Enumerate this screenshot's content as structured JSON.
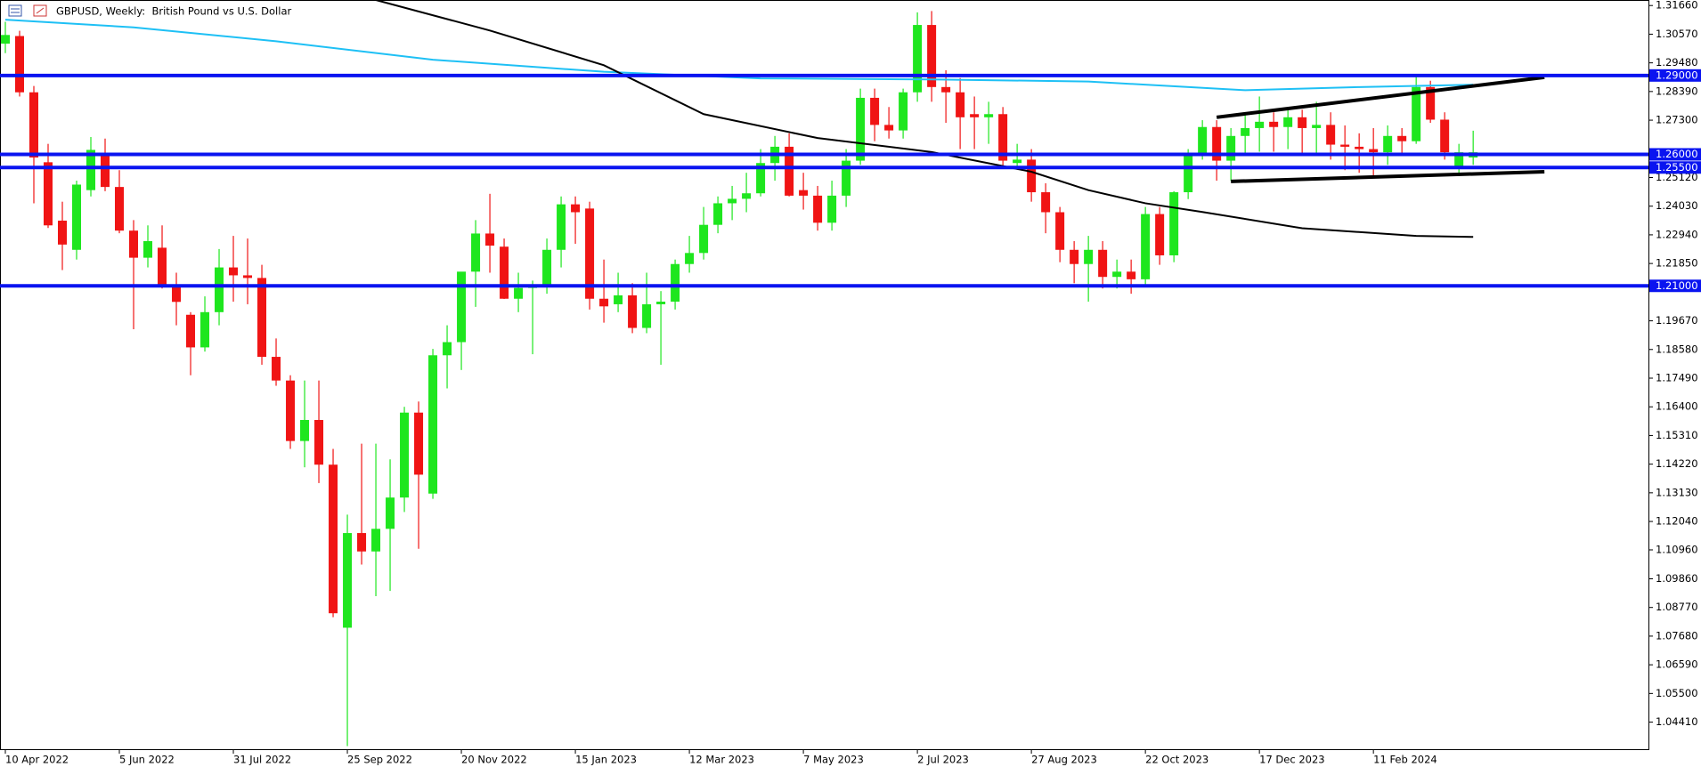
{
  "chart_data": {
    "type": "candlestick",
    "title": "GBPUSD, Weekly:  British Pound vs U.S. Dollar",
    "up_color": "#1ee61e",
    "down_color": "#f01414",
    "level_color": "#0a14f0",
    "xlim": [
      -0.375,
      115.3
    ],
    "ylim": [
      1.0338,
      1.3187
    ],
    "categories": [
      "10 Apr 2022",
      null,
      null,
      null,
      null,
      null,
      null,
      null,
      "5 Jun 2022",
      null,
      null,
      null,
      null,
      null,
      null,
      null,
      "31 Jul 2022",
      null,
      null,
      null,
      null,
      null,
      null,
      null,
      "25 Sep 2022",
      null,
      null,
      null,
      null,
      null,
      null,
      null,
      "20 Nov 2022",
      null,
      null,
      null,
      null,
      null,
      null,
      null,
      "15 Jan 2023",
      null,
      null,
      null,
      null,
      null,
      null,
      null,
      "12 Mar 2023",
      null,
      null,
      null,
      null,
      null,
      null,
      null,
      "7 May 2023",
      null,
      null,
      null,
      null,
      null,
      null,
      null,
      "2 Jul 2023",
      null,
      null,
      null,
      null,
      null,
      null,
      null,
      "27 Aug 2023",
      null,
      null,
      null,
      null,
      null,
      null,
      null,
      "22 Oct 2023",
      null,
      null,
      null,
      null,
      null,
      null,
      null,
      "17 Dec 2023",
      null,
      null,
      null,
      null,
      null,
      null,
      null,
      "11 Feb 2024",
      null,
      null,
      null,
      null,
      null,
      null,
      null
    ],
    "ohlc": [
      [
        1.3021,
        1.3104,
        1.2985,
        1.3054
      ],
      [
        1.305,
        1.307,
        1.282,
        1.2836
      ],
      [
        1.2836,
        1.286,
        1.2414,
        1.2588
      ],
      [
        1.257,
        1.264,
        1.232,
        1.233
      ],
      [
        1.2348,
        1.242,
        1.216,
        1.2257
      ],
      [
        1.2237,
        1.25,
        1.22,
        1.2485
      ],
      [
        1.2464,
        1.2666,
        1.244,
        1.2617
      ],
      [
        1.2596,
        1.266,
        1.246,
        1.2476
      ],
      [
        1.2476,
        1.254,
        1.23,
        1.231
      ],
      [
        1.231,
        1.235,
        1.1935,
        1.2207
      ],
      [
        1.2207,
        1.233,
        1.217,
        1.227
      ],
      [
        1.2245,
        1.233,
        1.209,
        1.2105
      ],
      [
        1.2105,
        1.215,
        1.195,
        1.2039
      ],
      [
        1.199,
        1.2,
        1.176,
        1.1866
      ],
      [
        1.1866,
        1.206,
        1.185,
        1.2
      ],
      [
        1.2,
        1.224,
        1.195,
        1.217
      ],
      [
        1.217,
        1.229,
        1.204,
        1.214
      ],
      [
        1.214,
        1.228,
        1.203,
        1.213
      ],
      [
        1.213,
        1.218,
        1.18,
        1.183
      ],
      [
        1.183,
        1.19,
        1.172,
        1.174
      ],
      [
        1.174,
        1.176,
        1.148,
        1.151
      ],
      [
        1.151,
        1.174,
        1.141,
        1.159
      ],
      [
        1.159,
        1.174,
        1.135,
        1.142
      ],
      [
        1.142,
        1.148,
        1.084,
        1.0855
      ],
      [
        1.08,
        1.123,
        1.035,
        1.116
      ],
      [
        1.116,
        1.15,
        1.104,
        1.109
      ],
      [
        1.109,
        1.15,
        1.092,
        1.1176
      ],
      [
        1.1176,
        1.144,
        1.094,
        1.1295
      ],
      [
        1.1295,
        1.164,
        1.124,
        1.1618
      ],
      [
        1.1618,
        1.166,
        1.11,
        1.1382
      ],
      [
        1.131,
        1.186,
        1.129,
        1.1836
      ],
      [
        1.1836,
        1.195,
        1.171,
        1.1886
      ],
      [
        1.1886,
        1.215,
        1.178,
        1.2154
      ],
      [
        1.2154,
        1.235,
        1.202,
        1.2299
      ],
      [
        1.2299,
        1.245,
        1.215,
        1.2253
      ],
      [
        1.2249,
        1.228,
        1.205,
        1.2051
      ],
      [
        1.2051,
        1.215,
        1.2,
        1.2092
      ],
      [
        1.2092,
        1.212,
        1.184,
        1.21
      ],
      [
        1.21,
        1.228,
        1.207,
        1.2237
      ],
      [
        1.2237,
        1.244,
        1.217,
        1.241
      ],
      [
        1.241,
        1.244,
        1.226,
        1.238
      ],
      [
        1.2394,
        1.242,
        1.201,
        1.2051
      ],
      [
        1.2051,
        1.22,
        1.196,
        1.2022
      ],
      [
        1.203,
        1.215,
        1.2,
        1.2064
      ],
      [
        1.2064,
        1.211,
        1.192,
        1.194
      ],
      [
        1.194,
        1.215,
        1.192,
        1.203
      ],
      [
        1.203,
        1.208,
        1.18,
        1.204
      ],
      [
        1.204,
        1.22,
        1.201,
        1.2183
      ],
      [
        1.2183,
        1.229,
        1.215,
        1.2225
      ],
      [
        1.2225,
        1.24,
        1.22,
        1.2332
      ],
      [
        1.2332,
        1.244,
        1.23,
        1.2414
      ],
      [
        1.2414,
        1.248,
        1.235,
        1.2431
      ],
      [
        1.2431,
        1.253,
        1.238,
        1.2452
      ],
      [
        1.2452,
        1.262,
        1.244,
        1.2567
      ],
      [
        1.2567,
        1.267,
        1.25,
        1.2629
      ],
      [
        1.2629,
        1.268,
        1.244,
        1.2443
      ],
      [
        1.2464,
        1.253,
        1.239,
        1.2443
      ],
      [
        1.2443,
        1.248,
        1.231,
        1.234
      ],
      [
        1.234,
        1.25,
        1.231,
        1.2443
      ],
      [
        1.2443,
        1.262,
        1.24,
        1.2576
      ],
      [
        1.2576,
        1.285,
        1.256,
        1.2815
      ],
      [
        1.2815,
        1.285,
        1.265,
        1.2712
      ],
      [
        1.2712,
        1.278,
        1.266,
        1.2691
      ],
      [
        1.2691,
        1.285,
        1.266,
        1.2836
      ],
      [
        1.2836,
        1.314,
        1.28,
        1.3092
      ],
      [
        1.3092,
        1.3145,
        1.28,
        1.2856
      ],
      [
        1.2856,
        1.292,
        1.272,
        1.2836
      ],
      [
        1.2836,
        1.289,
        1.262,
        1.2741
      ],
      [
        1.2753,
        1.282,
        1.262,
        1.2741
      ],
      [
        1.2741,
        1.28,
        1.264,
        1.2753
      ],
      [
        1.2753,
        1.278,
        1.255,
        1.2576
      ],
      [
        1.2567,
        1.264,
        1.255,
        1.258
      ],
      [
        1.258,
        1.262,
        1.242,
        1.2456
      ],
      [
        1.2456,
        1.249,
        1.23,
        1.238
      ],
      [
        1.238,
        1.24,
        1.219,
        1.2237
      ],
      [
        1.2237,
        1.227,
        1.211,
        1.2183
      ],
      [
        1.2183,
        1.229,
        1.204,
        1.2237
      ],
      [
        1.2237,
        1.227,
        1.209,
        1.2134
      ],
      [
        1.2134,
        1.22,
        1.209,
        1.2154
      ],
      [
        1.2154,
        1.22,
        1.207,
        1.2125
      ],
      [
        1.2125,
        1.24,
        1.21,
        1.2373
      ],
      [
        1.2373,
        1.24,
        1.218,
        1.2216
      ],
      [
        1.2216,
        1.246,
        1.219,
        1.2456
      ],
      [
        1.2456,
        1.262,
        1.243,
        1.26
      ],
      [
        1.26,
        1.273,
        1.258,
        1.2704
      ],
      [
        1.2704,
        1.273,
        1.25,
        1.2576
      ],
      [
        1.2576,
        1.27,
        1.25,
        1.267
      ],
      [
        1.267,
        1.276,
        1.26,
        1.27
      ],
      [
        1.27,
        1.282,
        1.261,
        1.2724
      ],
      [
        1.2724,
        1.276,
        1.261,
        1.2704
      ],
      [
        1.2704,
        1.277,
        1.262,
        1.2741
      ],
      [
        1.2741,
        1.277,
        1.26,
        1.27
      ],
      [
        1.27,
        1.28,
        1.26,
        1.2712
      ],
      [
        1.2712,
        1.276,
        1.258,
        1.2637
      ],
      [
        1.2637,
        1.271,
        1.254,
        1.2629
      ],
      [
        1.2629,
        1.268,
        1.253,
        1.262
      ],
      [
        1.262,
        1.27,
        1.252,
        1.2608
      ],
      [
        1.2608,
        1.271,
        1.256,
        1.267
      ],
      [
        1.267,
        1.27,
        1.26,
        1.265
      ],
      [
        1.265,
        1.29,
        1.264,
        1.2856
      ],
      [
        1.2856,
        1.288,
        1.272,
        1.2732
      ],
      [
        1.2732,
        1.276,
        1.258,
        1.2608
      ],
      [
        1.2546,
        1.264,
        1.252,
        1.2608
      ],
      [
        1.2588,
        1.269,
        1.256,
        1.2608
      ]
    ],
    "lines": [
      {
        "color": "#1ec0f5",
        "width": 2,
        "x": [
          0,
          9,
          19,
          30,
          42,
          53,
          65,
          76,
          87,
          95,
          103
        ],
        "values": [
          1.3112,
          1.3083,
          1.303,
          1.296,
          1.2914,
          1.2889,
          1.2885,
          1.2877,
          1.2844,
          1.2856,
          1.2865
        ]
      },
      {
        "color": "#000000",
        "width": 2,
        "x": [
          26,
          34,
          42,
          49,
          57,
          65,
          72,
          76,
          80,
          84,
          91,
          99,
          103
        ],
        "values": [
          1.3187,
          1.3071,
          1.2939,
          1.2753,
          1.2662,
          1.2609,
          1.2534,
          1.2464,
          1.2414,
          1.2381,
          1.2319,
          1.229,
          1.2286
        ]
      },
      {
        "color": "#000000",
        "width": 4,
        "x": [
          85,
          108
        ],
        "values": [
          1.2741,
          1.2893
        ]
      },
      {
        "color": "#000000",
        "width": 4,
        "x": [
          86,
          108
        ],
        "values": [
          1.2497,
          1.2534
        ]
      }
    ],
    "levels": [
      {
        "value": 1.29,
        "label": "1.29000"
      },
      {
        "value": 1.26,
        "label": "1.26000"
      },
      {
        "value": 1.255,
        "label": "1.25500"
      },
      {
        "value": 1.21,
        "label": "1.21000"
      }
    ],
    "yticks": [
      {
        "value": 1.3166,
        "label": "1.31660"
      },
      {
        "value": 1.3057,
        "label": "1.30570"
      },
      {
        "value": 1.2948,
        "label": "1.29480"
      },
      {
        "value": 1.2839,
        "label": "1.28390"
      },
      {
        "value": 1.273,
        "label": "1.27300"
      },
      {
        "value": 1.2512,
        "label": "1.25120"
      },
      {
        "value": 1.2403,
        "label": "1.24030"
      },
      {
        "value": 1.2294,
        "label": "1.22940"
      },
      {
        "value": 1.2185,
        "label": "1.21850"
      },
      {
        "value": 1.1967,
        "label": "1.19670"
      },
      {
        "value": 1.1858,
        "label": "1.18580"
      },
      {
        "value": 1.1749,
        "label": "1.17490"
      },
      {
        "value": 1.164,
        "label": "1.16400"
      },
      {
        "value": 1.1531,
        "label": "1.15310"
      },
      {
        "value": 1.1422,
        "label": "1.14220"
      },
      {
        "value": 1.1313,
        "label": "1.13130"
      },
      {
        "value": 1.1204,
        "label": "1.12040"
      },
      {
        "value": 1.1096,
        "label": "1.10960"
      },
      {
        "value": 1.0986,
        "label": "1.09860"
      },
      {
        "value": 1.0877,
        "label": "1.08770"
      },
      {
        "value": 1.0768,
        "label": "1.07680"
      },
      {
        "value": 1.0659,
        "label": "1.06590"
      },
      {
        "value": 1.055,
        "label": "1.05500"
      },
      {
        "value": 1.0441,
        "label": "1.04410"
      }
    ]
  }
}
